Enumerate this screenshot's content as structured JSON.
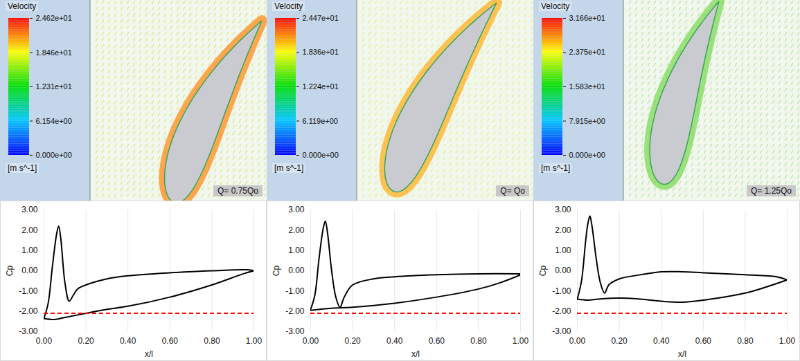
{
  "chart_data": [
    {
      "type": "vector_field",
      "annotation": "Q= 0.75Qo",
      "colorbar": {
        "title": "Velocity",
        "unit": "[m s^-1]",
        "range": [
          0,
          24.62
        ],
        "colors": [
          "#0000ff",
          "#00c8ff",
          "#00e000",
          "#ffff00",
          "#ff0000"
        ],
        "ticks": [
          {
            "value": 0,
            "label": "0.000e+00"
          },
          {
            "value": 6.154,
            "label": "6.154e+00"
          },
          {
            "value": 12.31,
            "label": "1.231e+01"
          },
          {
            "value": 18.46,
            "label": "1.846e+01"
          },
          {
            "value": 24.62,
            "label": "2.462e+01"
          }
        ]
      }
    },
    {
      "type": "vector_field",
      "annotation": "Q= Qo",
      "colorbar": {
        "title": "Velocity",
        "unit": "[m s^-1]",
        "range": [
          0,
          24.47
        ],
        "colors": [
          "#0000ff",
          "#00c8ff",
          "#00e000",
          "#ffff00",
          "#ff0000"
        ],
        "ticks": [
          {
            "value": 0,
            "label": "0.000e+00"
          },
          {
            "value": 6.119,
            "label": "6.119e+00"
          },
          {
            "value": 12.24,
            "label": "1.224e+01"
          },
          {
            "value": 18.36,
            "label": "1.836e+01"
          },
          {
            "value": 24.47,
            "label": "2.447e+01"
          }
        ]
      }
    },
    {
      "type": "vector_field",
      "annotation": "Q= 1.25Qo",
      "colorbar": {
        "title": "Velocity",
        "unit": "[m s^-1]",
        "range": [
          0,
          31.66
        ],
        "colors": [
          "#0000ff",
          "#00c8ff",
          "#00e000",
          "#ffff00",
          "#ff0000"
        ],
        "ticks": [
          {
            "value": 0,
            "label": "0.000e+00"
          },
          {
            "value": 7.915,
            "label": "7.915e+00"
          },
          {
            "value": 15.83,
            "label": "1.583e+01"
          },
          {
            "value": 23.75,
            "label": "2.375e+01"
          },
          {
            "value": 31.66,
            "label": "3.166e+01"
          }
        ]
      }
    },
    {
      "type": "line",
      "xlabel": "x/l",
      "ylabel": "Cp",
      "xlim": [
        0,
        1
      ],
      "ylim": [
        -3,
        3
      ],
      "grid": "x",
      "xticks": [
        {
          "value": 0,
          "label": "0.00"
        },
        {
          "value": 0.2,
          "label": "0.20"
        },
        {
          "value": 0.4,
          "label": "0.40"
        },
        {
          "value": 0.6,
          "label": "0.60"
        },
        {
          "value": 0.8,
          "label": "0.80"
        },
        {
          "value": 1,
          "label": "1.00"
        }
      ],
      "yticks": [
        {
          "value": -3,
          "label": "-3.00"
        },
        {
          "value": -2,
          "label": "-2.00"
        },
        {
          "value": -1,
          "label": "-1.00"
        },
        {
          "value": 0,
          "label": "0.00"
        },
        {
          "value": 1,
          "label": "1.00"
        },
        {
          "value": 2,
          "label": "2.00"
        },
        {
          "value": 3,
          "label": "3.00"
        }
      ],
      "hline": {
        "value": -2.1,
        "color": "#ff0000",
        "line_style": "dashed"
      },
      "series": [
        {
          "color": "#000000",
          "line_style": "solid",
          "x": [
            0,
            0.02,
            0.04,
            0.06,
            0.07,
            0.08,
            0.1,
            0.12,
            0.14,
            0.16,
            0.2,
            0.3,
            0.4,
            0.6,
            0.8,
            0.97,
            1.0
          ],
          "values": [
            -2.35,
            -1.6,
            0.2,
            1.8,
            2.2,
            1.6,
            -0.6,
            -1.5,
            -1.2,
            -0.9,
            -0.7,
            -0.4,
            -0.25,
            -0.1,
            0.0,
            0.05,
            0.0
          ]
        },
        {
          "color": "#000000",
          "line_style": "solid",
          "x": [
            0,
            0.05,
            0.1,
            0.2,
            0.3,
            0.4,
            0.6,
            0.8,
            0.95,
            1.0
          ],
          "values": [
            -2.35,
            -2.4,
            -2.3,
            -2.1,
            -1.9,
            -1.75,
            -1.3,
            -0.7,
            -0.15,
            0.0
          ]
        }
      ]
    },
    {
      "type": "line",
      "xlabel": "x/l",
      "ylabel": "Cp",
      "xlim": [
        0,
        1
      ],
      "ylim": [
        -3,
        3
      ],
      "grid": "x",
      "xticks": [
        {
          "value": 0,
          "label": "0.00"
        },
        {
          "value": 0.2,
          "label": "0.20"
        },
        {
          "value": 0.4,
          "label": "0.40"
        },
        {
          "value": 0.6,
          "label": "0.60"
        },
        {
          "value": 0.8,
          "label": "0.80"
        },
        {
          "value": 1,
          "label": "1.00"
        }
      ],
      "yticks": [
        {
          "value": -3,
          "label": "-3.00"
        },
        {
          "value": -2,
          "label": "-2.00"
        },
        {
          "value": -1,
          "label": "-1.00"
        },
        {
          "value": 0,
          "label": "0.00"
        },
        {
          "value": 1,
          "label": "1.00"
        },
        {
          "value": 2,
          "label": "2.00"
        },
        {
          "value": 3,
          "label": "3.00"
        }
      ],
      "hline": {
        "value": -2.1,
        "color": "#ff0000",
        "line_style": "dashed"
      },
      "series": [
        {
          "color": "#000000",
          "line_style": "solid",
          "x": [
            0,
            0.02,
            0.04,
            0.06,
            0.07,
            0.08,
            0.1,
            0.12,
            0.14,
            0.16,
            0.2,
            0.3,
            0.4,
            0.6,
            0.8,
            1.0
          ],
          "values": [
            -1.9,
            -1.2,
            0.6,
            2.1,
            2.45,
            1.9,
            0.0,
            -1.3,
            -1.8,
            -1.3,
            -0.7,
            -0.4,
            -0.3,
            -0.2,
            -0.15,
            -0.15
          ]
        },
        {
          "color": "#000000",
          "line_style": "solid",
          "x": [
            0,
            0.1,
            0.2,
            0.4,
            0.6,
            0.8,
            0.9,
            1.0
          ],
          "values": [
            -1.95,
            -1.85,
            -1.8,
            -1.6,
            -1.3,
            -0.9,
            -0.6,
            -0.2
          ]
        }
      ]
    },
    {
      "type": "line",
      "xlabel": "x/l",
      "ylabel": "Cp",
      "xlim": [
        0,
        1
      ],
      "ylim": [
        -3,
        3
      ],
      "grid": "x",
      "xticks": [
        {
          "value": 0,
          "label": "0.00"
        },
        {
          "value": 0.2,
          "label": "0.20"
        },
        {
          "value": 0.4,
          "label": "0.40"
        },
        {
          "value": 0.6,
          "label": "0.60"
        },
        {
          "value": 0.8,
          "label": "0.80"
        },
        {
          "value": 1,
          "label": "1.00"
        }
      ],
      "yticks": [
        {
          "value": -3,
          "label": "-3.00"
        },
        {
          "value": -2,
          "label": "-2.00"
        },
        {
          "value": -1,
          "label": "-1.00"
        },
        {
          "value": 0,
          "label": "0.00"
        },
        {
          "value": 1,
          "label": "1.00"
        },
        {
          "value": 2,
          "label": "2.00"
        },
        {
          "value": 3,
          "label": "3.00"
        }
      ],
      "hline": {
        "value": -2.1,
        "color": "#ff0000",
        "line_style": "dashed"
      },
      "series": [
        {
          "color": "#000000",
          "line_style": "solid",
          "x": [
            0,
            0.02,
            0.04,
            0.05,
            0.06,
            0.07,
            0.09,
            0.11,
            0.13,
            0.15,
            0.2,
            0.3,
            0.4,
            0.5,
            0.6,
            0.8,
            0.95,
            1.0
          ],
          "values": [
            -1.4,
            -0.5,
            1.5,
            2.3,
            2.7,
            2.2,
            0.6,
            -0.6,
            -1.1,
            -0.7,
            -0.4,
            -0.2,
            -0.05,
            -0.05,
            -0.1,
            -0.2,
            -0.3,
            -0.45
          ]
        },
        {
          "color": "#000000",
          "line_style": "solid",
          "x": [
            0,
            0.05,
            0.1,
            0.2,
            0.3,
            0.4,
            0.5,
            0.6,
            0.8,
            0.9,
            1.0
          ],
          "values": [
            -1.4,
            -1.45,
            -1.4,
            -1.35,
            -1.4,
            -1.5,
            -1.55,
            -1.45,
            -1.1,
            -0.8,
            -0.45
          ]
        }
      ]
    }
  ]
}
